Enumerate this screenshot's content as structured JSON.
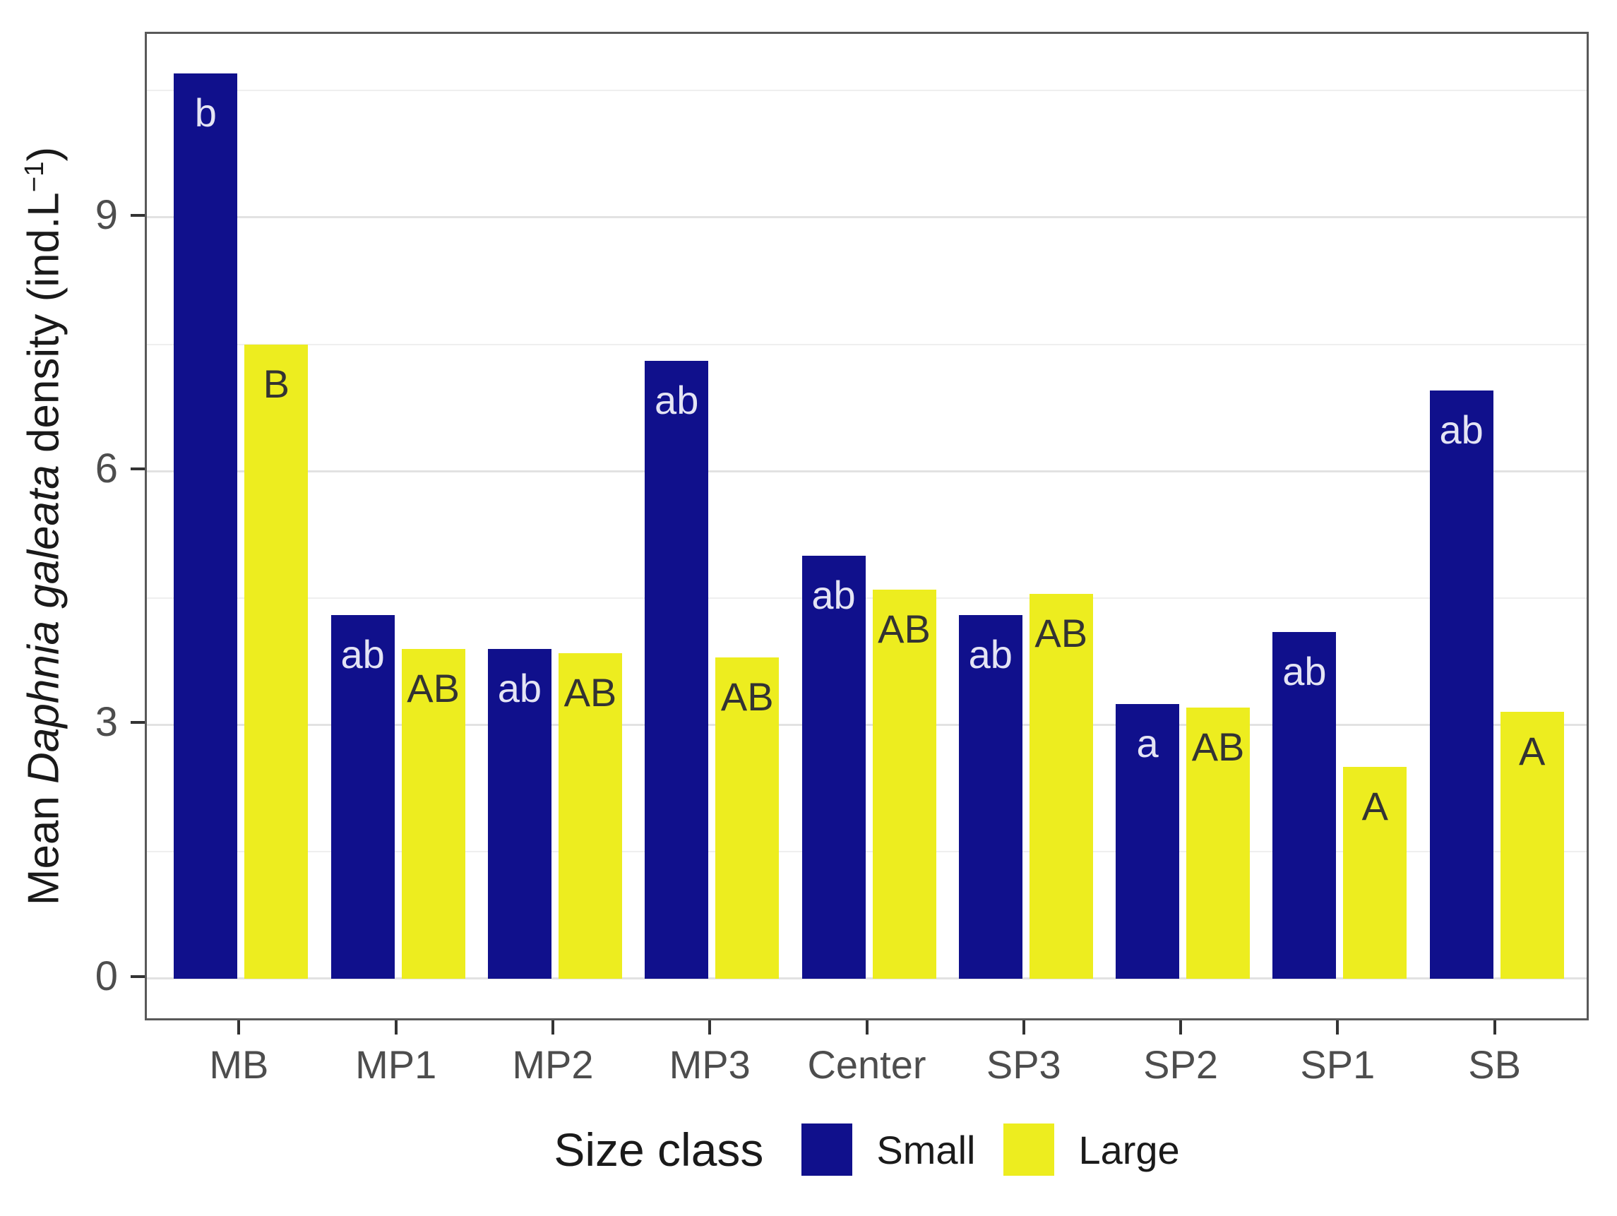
{
  "chart_data": {
    "type": "bar",
    "title": "",
    "xlabel": "",
    "ylabel_parts": {
      "prefix": "Mean ",
      "species_italic": "Daphnia galeata",
      "middle": " density (ind.L",
      "superscript": "−1",
      "suffix": ")"
    },
    "categories": [
      "MB",
      "MP1",
      "MP2",
      "MP3",
      "Center",
      "SP3",
      "SP2",
      "SP1",
      "SB"
    ],
    "series": [
      {
        "name": "Small",
        "color": "#10108C",
        "letter_color": "#E4E4F4",
        "values": [
          10.7,
          4.3,
          3.9,
          7.3,
          5.0,
          4.3,
          3.25,
          4.1,
          6.95
        ],
        "significance_letters": [
          "b",
          "ab",
          "ab",
          "ab",
          "ab",
          "ab",
          "a",
          "ab",
          "ab"
        ]
      },
      {
        "name": "Large",
        "color": "#EDED1F",
        "letter_color": "#333333",
        "values": [
          7.5,
          3.9,
          3.85,
          3.8,
          4.6,
          4.55,
          3.2,
          2.5,
          3.15
        ],
        "significance_letters": [
          "B",
          "AB",
          "AB",
          "AB",
          "AB",
          "AB",
          "AB",
          "A",
          "A"
        ]
      }
    ],
    "y_axis": {
      "major_ticks": [
        0,
        3,
        6,
        9
      ],
      "minor_gridlines": [
        1.5,
        4.5,
        7.5,
        10.5
      ],
      "display_range": [
        -0.52,
        11.17
      ]
    },
    "legend": {
      "title": "Size class",
      "position": "bottom",
      "items": [
        {
          "label": "Small",
          "color": "#10108C"
        },
        {
          "label": "Large",
          "color": "#EDED1F"
        }
      ]
    },
    "grid": {
      "major_color": "#e2e2e2",
      "minor_color": "#efefef"
    },
    "panel_border_color": "#595959",
    "axis_text_color": "#4d4d4d"
  }
}
